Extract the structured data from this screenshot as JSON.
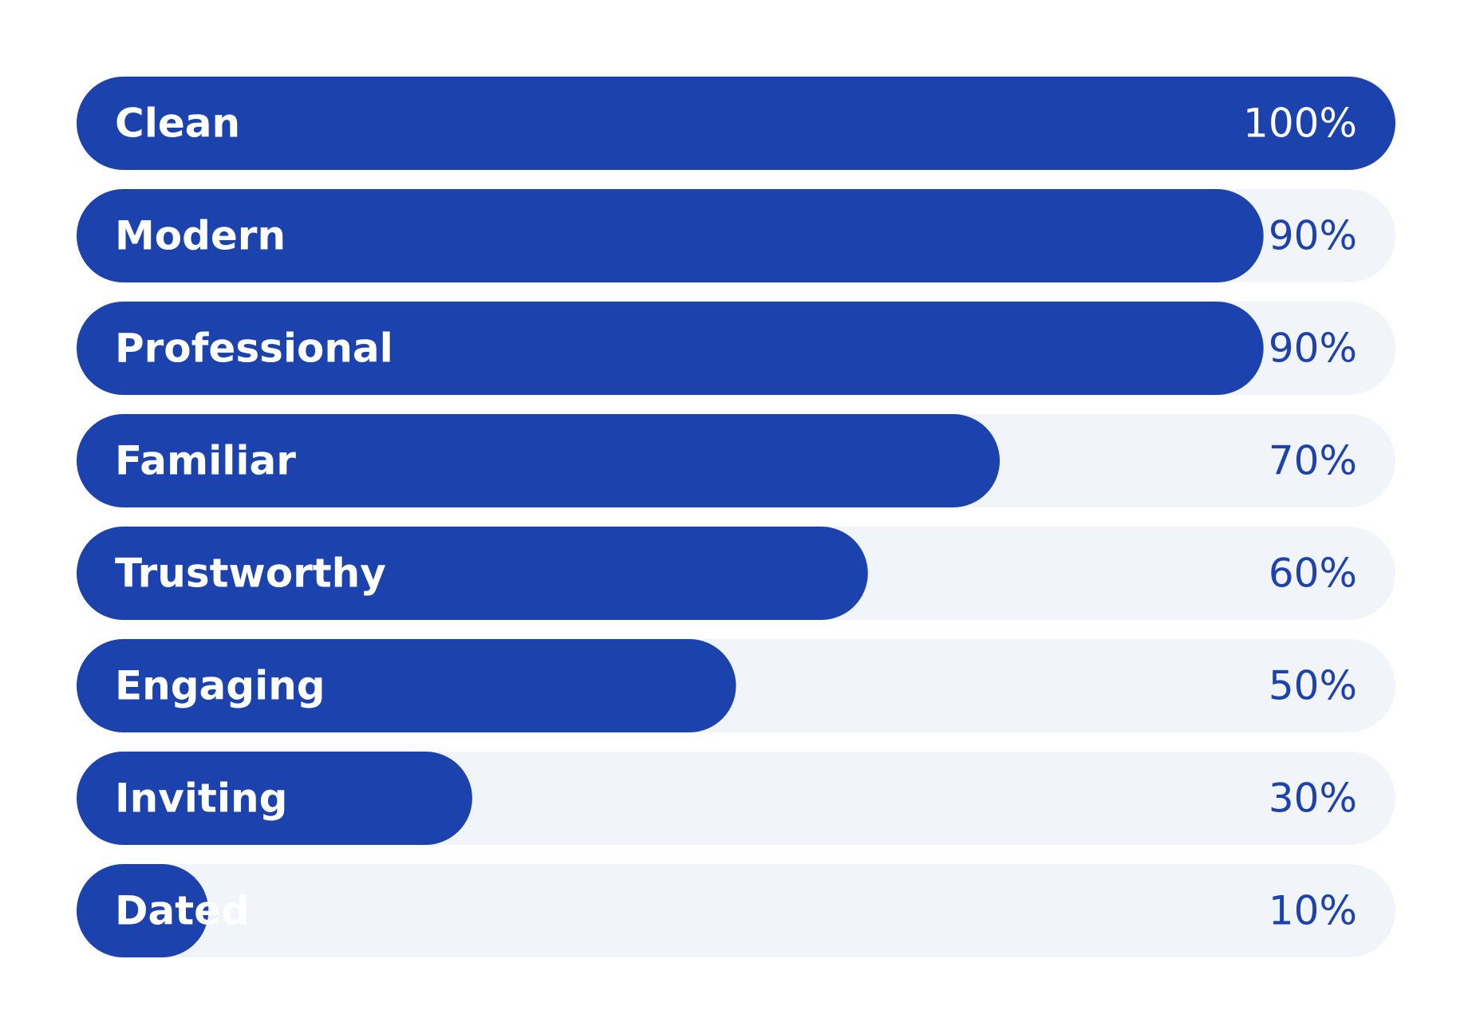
{
  "chart_data": {
    "type": "bar",
    "orientation": "horizontal",
    "categories": [
      "Clean",
      "Modern",
      "Professional",
      "Familiar",
      "Trustworthy",
      "Engaging",
      "Inviting",
      "Dated"
    ],
    "values": [
      100,
      90,
      90,
      70,
      60,
      50,
      30,
      10
    ],
    "value_labels": [
      "100%",
      "90%",
      "90%",
      "70%",
      "60%",
      "50%",
      "30%",
      "10%"
    ],
    "xlim": [
      0,
      100
    ],
    "title": "",
    "xlabel": "",
    "ylabel": "",
    "grid": false,
    "legend": "none",
    "colors": {
      "bar": "#1c42ae",
      "track": "#f1f4f8",
      "label": "#ffffff",
      "value": "#1c42ae",
      "background": "#ffffff"
    }
  }
}
